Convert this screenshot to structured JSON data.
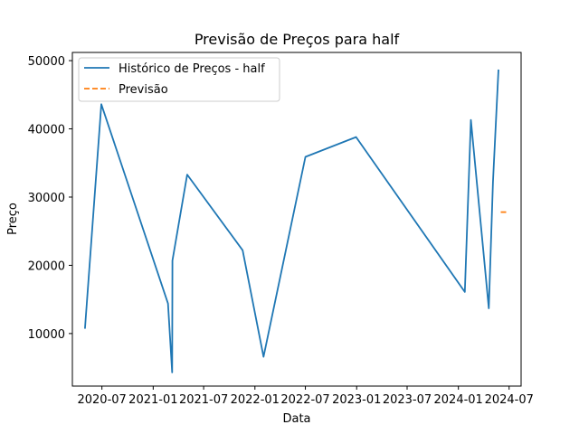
{
  "chart_data": {
    "type": "line",
    "title": "Previsão de Preços para half",
    "xlabel": "Data",
    "ylabel": "Preço",
    "xlim": [
      "2020-03-17",
      "2024-08-13"
    ],
    "ylim": [
      2300,
      51200
    ],
    "x_ticks": [
      "2020-07",
      "2021-01",
      "2021-07",
      "2022-01",
      "2022-07",
      "2023-01",
      "2023-07",
      "2024-01",
      "2024-07"
    ],
    "y_ticks": [
      10000,
      20000,
      30000,
      40000,
      50000
    ],
    "grid": false,
    "legend_position": "top-left",
    "series": [
      {
        "name": "Histórico de Preços - half",
        "color": "#1f77b4",
        "style": "solid",
        "points": [
          {
            "x": "2020-05-01",
            "y": 10700
          },
          {
            "x": "2020-06-29",
            "y": 43600
          },
          {
            "x": "2021-02-23",
            "y": 14400
          },
          {
            "x": "2021-03-10",
            "y": 4300
          },
          {
            "x": "2021-03-11",
            "y": 20700
          },
          {
            "x": "2021-05-03",
            "y": 33300
          },
          {
            "x": "2021-11-18",
            "y": 22200
          },
          {
            "x": "2022-02-01",
            "y": 6600
          },
          {
            "x": "2022-07-01",
            "y": 35900
          },
          {
            "x": "2022-12-30",
            "y": 38800
          },
          {
            "x": "2024-01-24",
            "y": 16100
          },
          {
            "x": "2024-02-15",
            "y": 41300
          },
          {
            "x": "2024-04-19",
            "y": 13700
          },
          {
            "x": "2024-05-04",
            "y": 32200
          },
          {
            "x": "2024-05-24",
            "y": 48700
          }
        ]
      },
      {
        "name": "Previsão",
        "color": "#ff7f0e",
        "style": "dashed",
        "points": [
          {
            "x": "2024-06-01",
            "y": 27800
          },
          {
            "x": "2024-06-28",
            "y": 27800
          }
        ]
      }
    ]
  }
}
